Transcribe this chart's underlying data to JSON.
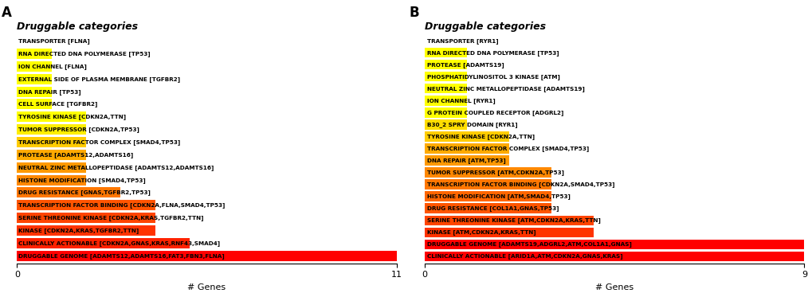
{
  "panel_A": {
    "title": "Druggable categories",
    "xlabel": "# Genes",
    "xlim": 11,
    "categories": [
      "TRANSPORTER [FLNA]",
      "RNA DIRECTED DNA POLYMERASE [TP53]",
      "ION CHANNEL [FLNA]",
      "EXTERNAL SIDE OF PLASMA MEMBRANE [TGFBR2]",
      "DNA REPAIR [TP53]",
      "CELL SURFACE [TGFBR2]",
      "TYROSINE KINASE [CDKN2A,TTN]",
      "TUMOR SUPPRESSOR [CDKN2A,TP53]",
      "TRANSCRIPTION FACTOR COMPLEX [SMAD4,TP53]",
      "PROTEASE [ADAMTS12,ADAMTS16]",
      "NEUTRAL ZINC METALLOPEPTIDASE [ADAMTS12,ADAMTS16]",
      "HISTONE MODIFICATION [SMAD4,TP53]",
      "DRUG RESISTANCE [GNAS,TGFBR2,TP53]",
      "TRANSCRIPTION FACTOR BINDING [CDKN2A,FLNA,SMAD4,TP53]",
      "SERINE THREONINE KINASE [CDKN2A,KRAS,TGFBR2,TTN]",
      "KINASE [CDKN2A,KRAS,TGFBR2,TTN]",
      "CLINICALLY ACTIONABLE [CDKN2A,GNAS,KRAS,RNF43,SMAD4]",
      "DRUGGABLE GENOME [ADAMTS12,ADAMTS16,FAT3,FBN3,FLNA]"
    ],
    "values": [
      1,
      1,
      1,
      1,
      1,
      1,
      2,
      2,
      2,
      2,
      2,
      2,
      3,
      4,
      4,
      4,
      5,
      11
    ],
    "colors": [
      "none",
      "#ffff00",
      "#ffff00",
      "#ffff00",
      "#ffff00",
      "#ffff00",
      "#ffff00",
      "#ffee00",
      "#ffcc00",
      "#ffaa00",
      "#ff9900",
      "#ff8800",
      "#ff7700",
      "#ff5500",
      "#ff4400",
      "#ff3300",
      "#ff2200",
      "#ff0000"
    ]
  },
  "panel_B": {
    "title": "Druggable categories",
    "xlabel": "# Genes",
    "xlim": 9,
    "categories": [
      "TRANSPORTER [RYR1]",
      "RNA DIRECTED DNA POLYMERASE [TP53]",
      "PROTEASE [ADAMTS19]",
      "PHOSPHATIDYLINOSITOL 3 KINASE [ATM]",
      "NEUTRAL ZINC METALLOPEPTIDASE [ADAMTS19]",
      "ION CHANNEL [RYR1]",
      "G PROTEIN COUPLED RECEPTOR [ADGRL2]",
      "B30_2 SPRY DOMAIN [RYR1]",
      "TYROSINE KINASE [CDKN2A,TTN]",
      "TRANSCRIPTION FACTOR COMPLEX [SMAD4,TP53]",
      "DNA REPAIR [ATM,TP53]",
      "TUMOR SUPPRESSOR [ATM,CDKN2A,TP53]",
      "TRANSCRIPTION FACTOR BINDING [CDKN2A,SMAD4,TP53]",
      "HISTONE MODIFICATION [ATM,SMAD4,TP53]",
      "DRUG RESISTANCE [COL1A1,GNAS,TP53]",
      "SERINE THREONINE KINASE [ATM,CDKN2A,KRAS,TTN]",
      "KINASE [ATM,CDKN2A,KRAS,TTN]",
      "DRUGGABLE GENOME [ADAMTS19,ADGRL2,ATM,COL1A1,GNAS]",
      "CLINICALLY ACTIONABLE [ARID1A,ATM,CDKN2A,GNAS,KRAS]"
    ],
    "values": [
      1,
      1,
      1,
      1,
      1,
      1,
      1,
      1,
      2,
      2,
      2,
      3,
      3,
      3,
      3,
      4,
      4,
      9,
      9
    ],
    "colors": [
      "none",
      "#ffff00",
      "#ffff00",
      "#ffff00",
      "#ffff00",
      "#ffff00",
      "#ffff00",
      "#ffdd00",
      "#ffcc00",
      "#ffaa00",
      "#ff9900",
      "#ff8800",
      "#ff7700",
      "#ff6600",
      "#ff5500",
      "#ff4400",
      "#ff3300",
      "#ff0000",
      "#ff0000"
    ]
  }
}
